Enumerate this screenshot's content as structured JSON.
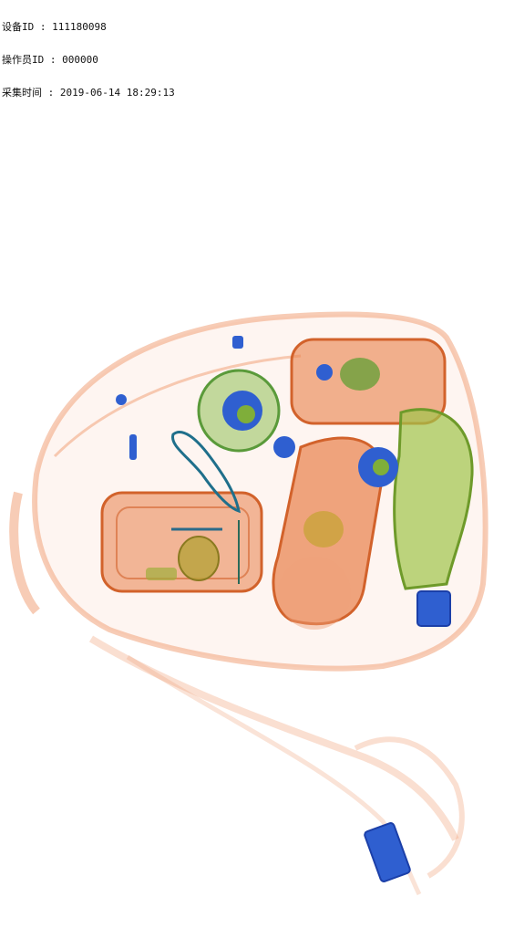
{
  "meta": {
    "lines": [
      "设备ID : 111180098",
      "操作员ID : 000000",
      "采集时间 : 2019-06-14 18:29:13"
    ]
  },
  "colors": {
    "organic": "#e8804a",
    "organic_light": "#f3b48f",
    "mixed": "#7fae3a",
    "metal": "#2f5fd0",
    "metal_dark": "#1b3fa8",
    "background": "#ffffff"
  }
}
